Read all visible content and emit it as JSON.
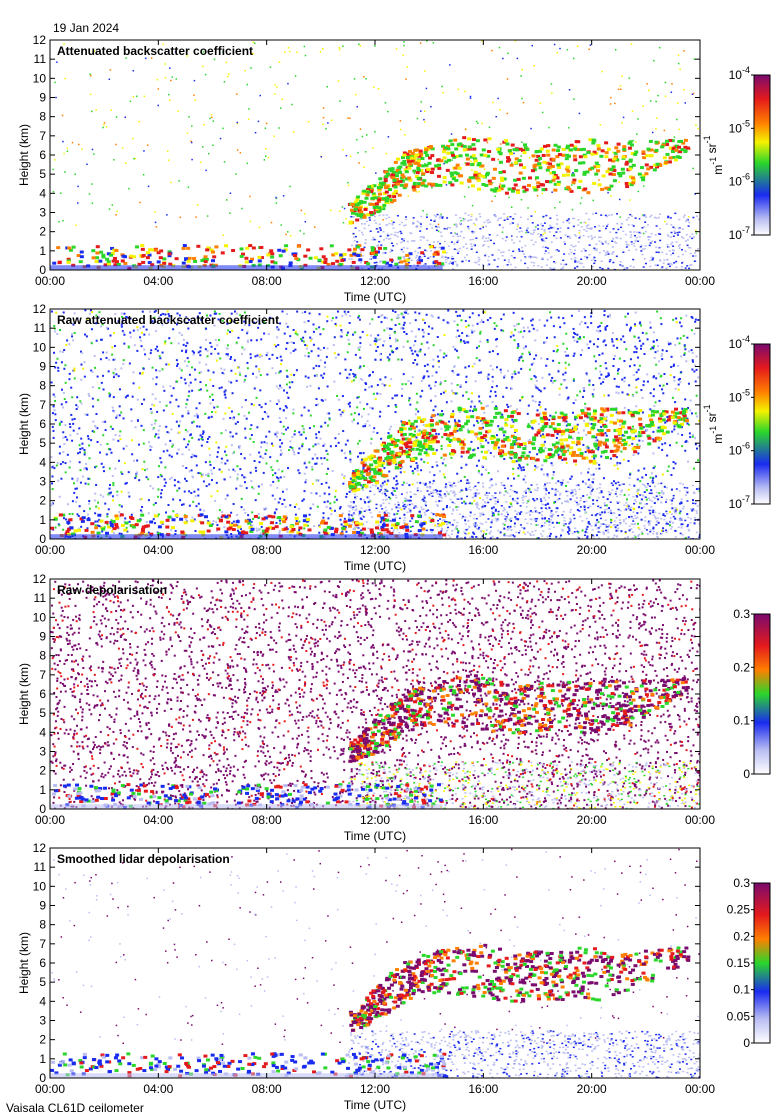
{
  "date_label": "19 Jan 2024",
  "footer_label": "Vaisala CL61D ceilometer",
  "colors": {
    "purple": "#7a0a6e",
    "red": "#e41a1c",
    "orange": "#ff7f00",
    "yellow": "#f5f200",
    "green": "#2bd62b",
    "blue": "#1a2bf0",
    "light_blue": "#b9bdf2",
    "white": "#ffffff"
  },
  "chart_data": [
    {
      "type": "heatmap",
      "title": "Attenuated backscatter coefficient",
      "xlabel": "Time (UTC)",
      "ylabel": "Height (km)",
      "x_ticks": [
        "00:00",
        "04:00",
        "08:00",
        "12:00",
        "16:00",
        "20:00",
        "00:00"
      ],
      "y_ticks": [
        "0",
        "1",
        "2",
        "3",
        "4",
        "5",
        "6",
        "7",
        "8",
        "9",
        "10",
        "11",
        "12"
      ],
      "xlim_hours": [
        0,
        24
      ],
      "ylim_km": [
        0,
        12
      ],
      "colorbar": {
        "scale": "log",
        "labels_base": [
          "10",
          "10",
          "10",
          "10"
        ],
        "labels_exp": [
          "-4",
          "-5",
          "-6",
          "-7"
        ],
        "unit_base": [
          "m",
          "sr"
        ],
        "unit_exp": [
          "-1",
          "-1"
        ]
      },
      "layers": [
        {
          "name": "boundary layer aerosol",
          "hours": [
            0,
            14.5
          ],
          "height_km": [
            0,
            1.2
          ],
          "level": "high"
        },
        {
          "name": "mid-level cloud",
          "hours": [
            10.8,
            23.5
          ],
          "height_km": [
            2.5,
            7.2
          ],
          "level": "moderate-high"
        },
        {
          "name": "low clear-air signal",
          "hours": [
            11,
            24
          ],
          "height_km": [
            0,
            3.0
          ],
          "level": "low"
        }
      ]
    },
    {
      "type": "heatmap",
      "title": "Raw attenuated backscatter coefficient",
      "xlabel": "Time (UTC)",
      "ylabel": "Height (km)",
      "x_ticks": [
        "00:00",
        "04:00",
        "08:00",
        "12:00",
        "16:00",
        "20:00",
        "00:00"
      ],
      "y_ticks": [
        "0",
        "1",
        "2",
        "3",
        "4",
        "5",
        "6",
        "7",
        "8",
        "9",
        "10",
        "11",
        "12"
      ],
      "xlim_hours": [
        0,
        24
      ],
      "ylim_km": [
        0,
        12
      ],
      "colorbar": {
        "scale": "log",
        "labels_base": [
          "10",
          "10",
          "10",
          "10"
        ],
        "labels_exp": [
          "-4",
          "-5",
          "-6",
          "-7"
        ],
        "unit_base": [
          "m",
          "sr"
        ],
        "unit_exp": [
          "-1",
          "-1"
        ]
      },
      "layers": [
        {
          "name": "boundary layer aerosol",
          "hours": [
            0,
            14.5
          ],
          "height_km": [
            0,
            1.2
          ],
          "level": "high"
        },
        {
          "name": "mid-level cloud",
          "hours": [
            10.8,
            23.5
          ],
          "height_km": [
            2.5,
            7.2
          ],
          "level": "moderate-high"
        },
        {
          "name": "noise",
          "hours": [
            0,
            24
          ],
          "height_km": [
            0,
            12
          ],
          "level": "low"
        }
      ]
    },
    {
      "type": "heatmap",
      "title": "Raw depolarisation",
      "xlabel": "Time (UTC)",
      "ylabel": "Height (km)",
      "x_ticks": [
        "00:00",
        "04:00",
        "08:00",
        "12:00",
        "16:00",
        "20:00",
        "00:00"
      ],
      "y_ticks": [
        "0",
        "1",
        "2",
        "3",
        "4",
        "5",
        "6",
        "7",
        "8",
        "9",
        "10",
        "11",
        "12"
      ],
      "xlim_hours": [
        0,
        24
      ],
      "ylim_km": [
        0,
        12
      ],
      "colorbar": {
        "scale": "linear",
        "labels": [
          "0.3",
          "0.2",
          "0.1",
          "0"
        ]
      },
      "layers": [
        {
          "name": "boundary layer",
          "hours": [
            0,
            14.5
          ],
          "height_km": [
            0,
            1.2
          ],
          "level": "low"
        },
        {
          "name": "mid-level cloud",
          "hours": [
            10.8,
            23.5
          ],
          "height_km": [
            2.5,
            7.2
          ],
          "level": "high"
        },
        {
          "name": "noise",
          "hours": [
            0,
            24
          ],
          "height_km": [
            0,
            12
          ],
          "level": "high"
        }
      ]
    },
    {
      "type": "heatmap",
      "title": "Smoothed lidar depolarisation",
      "xlabel": "Time (UTC)",
      "ylabel": "Height (km)",
      "x_ticks": [
        "00:00",
        "04:00",
        "08:00",
        "12:00",
        "16:00",
        "20:00",
        "00:00"
      ],
      "y_ticks": [
        "0",
        "1",
        "2",
        "3",
        "4",
        "5",
        "6",
        "7",
        "8",
        "9",
        "10",
        "11",
        "12"
      ],
      "xlim_hours": [
        0,
        24
      ],
      "ylim_km": [
        0,
        12
      ],
      "colorbar": {
        "scale": "linear",
        "labels": [
          "0.3",
          "0.25",
          "0.2",
          "0.15",
          "0.1",
          "0.05",
          "0"
        ]
      },
      "layers": [
        {
          "name": "boundary layer",
          "hours": [
            0,
            14.5
          ],
          "height_km": [
            0,
            1.2
          ],
          "level": "low"
        },
        {
          "name": "mid-level cloud",
          "hours": [
            10.8,
            23.5
          ],
          "height_km": [
            2.5,
            7.2
          ],
          "level": "high"
        },
        {
          "name": "low clear-air signal",
          "hours": [
            11,
            24
          ],
          "height_km": [
            0,
            2.5
          ],
          "level": "low"
        }
      ]
    }
  ]
}
